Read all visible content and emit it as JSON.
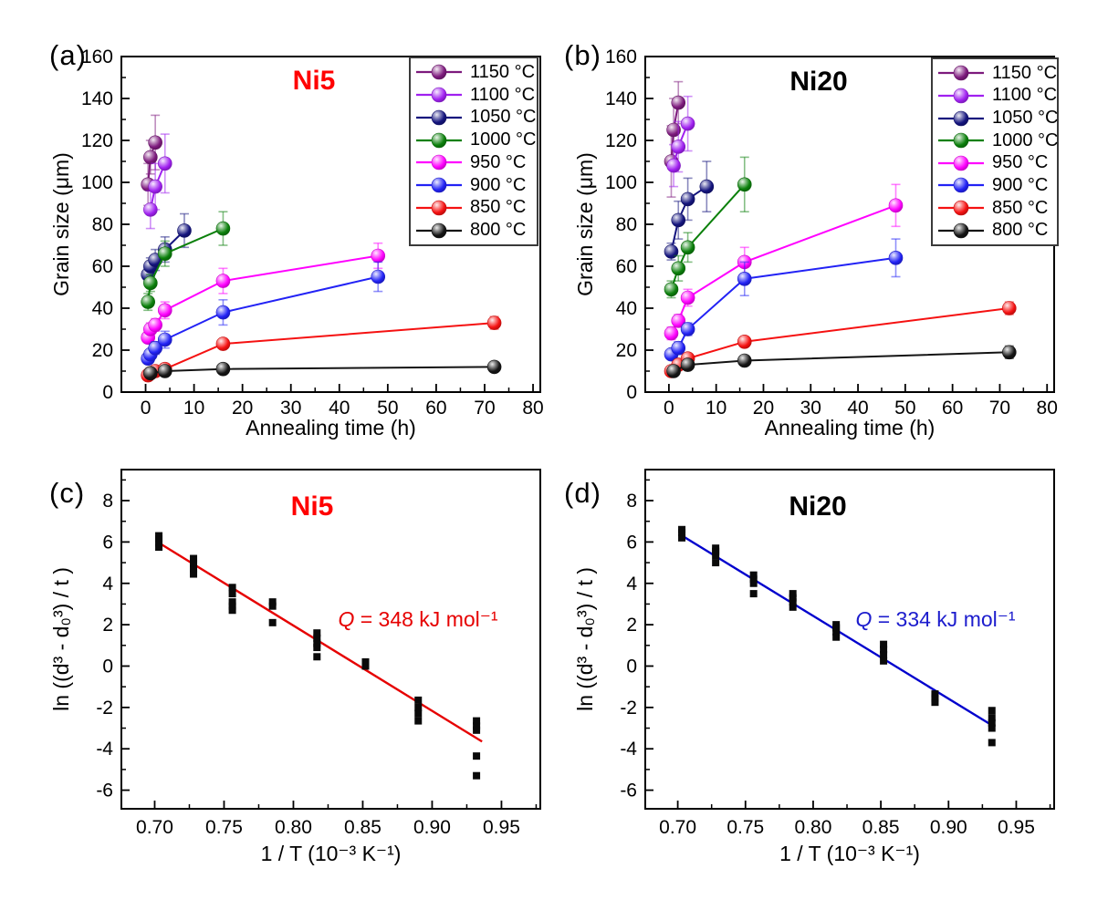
{
  "figure": {
    "background": "#ffffff"
  },
  "chart_data": [
    {
      "id": "a",
      "type": "line",
      "panel_label": "(a)",
      "title": "Ni5",
      "title_color": "#ff0000",
      "xlabel": "Annealing time (h)",
      "ylabel": "Grain size (μm)",
      "xlim": [
        -5,
        81.5
      ],
      "ylim": [
        0,
        160
      ],
      "xticks": [
        "0",
        "10",
        "20",
        "30",
        "40",
        "50",
        "60",
        "70",
        "80"
      ],
      "yticks": [
        "0",
        "20",
        "40",
        "60",
        "80",
        "100",
        "120",
        "140",
        "160"
      ],
      "xminor": 5,
      "yminor": 10,
      "legend_position": "top-right",
      "series": [
        {
          "name": "1150 °C",
          "color": "#7d1a7d",
          "x": [
            0.5,
            1,
            2
          ],
          "y": [
            99,
            112,
            119
          ],
          "err": [
            10,
            8,
            13
          ]
        },
        {
          "name": "1100 °C",
          "color": "#a020f0",
          "x": [
            1,
            2,
            4
          ],
          "y": [
            87,
            98,
            109
          ],
          "err": [
            9,
            11,
            14
          ]
        },
        {
          "name": "1050 °C",
          "color": "#14147e",
          "x": [
            0.5,
            1,
            2,
            4,
            8
          ],
          "y": [
            56,
            60,
            63,
            68,
            77
          ],
          "err": [
            3,
            4,
            5,
            6,
            8
          ]
        },
        {
          "name": "1000 °C",
          "color": "#0b800b",
          "x": [
            0.5,
            1,
            4,
            16
          ],
          "y": [
            43,
            52,
            66,
            78
          ],
          "err": [
            4,
            4,
            6,
            8
          ]
        },
        {
          "name": "950 °C",
          "color": "#ff00ff",
          "x": [
            0.5,
            1,
            2,
            4,
            16,
            48
          ],
          "y": [
            26,
            30,
            32,
            39,
            53,
            65
          ],
          "err": [
            2,
            3,
            3,
            4,
            6,
            6
          ]
        },
        {
          "name": "900 °C",
          "color": "#2222f5",
          "x": [
            0.5,
            1,
            2,
            4,
            16,
            48
          ],
          "y": [
            16,
            18,
            21,
            25,
            38,
            55
          ],
          "err": [
            2,
            2,
            3,
            4,
            6,
            7
          ]
        },
        {
          "name": "850 °C",
          "color": "#f51111",
          "x": [
            0.5,
            1,
            2,
            4,
            16,
            72
          ],
          "y": [
            8,
            9,
            10,
            11,
            23,
            33
          ],
          "err": [
            1,
            1,
            1,
            2,
            2,
            3
          ]
        },
        {
          "name": "800 °C",
          "color": "#141414",
          "x": [
            1,
            4,
            16,
            72
          ],
          "y": [
            9,
            10,
            11,
            12
          ],
          "err": [
            1,
            1,
            1,
            2
          ]
        }
      ]
    },
    {
      "id": "b",
      "type": "line",
      "panel_label": "(b)",
      "title": "Ni20",
      "title_color": "#000000",
      "xlabel": "Annealing time (h)",
      "ylabel": "Grain size (μm)",
      "xlim": [
        -5,
        81.5
      ],
      "ylim": [
        0,
        160
      ],
      "xticks": [
        "0",
        "10",
        "20",
        "30",
        "40",
        "50",
        "60",
        "70",
        "80"
      ],
      "yticks": [
        "0",
        "20",
        "40",
        "60",
        "80",
        "100",
        "120",
        "140",
        "160"
      ],
      "xminor": 5,
      "yminor": 10,
      "legend_position": "top-right",
      "series": [
        {
          "name": "1150 °C",
          "color": "#7d1a7d",
          "x": [
            0.5,
            1,
            2
          ],
          "y": [
            110,
            125,
            138
          ],
          "err": [
            17,
            15,
            10
          ]
        },
        {
          "name": "1100 °C",
          "color": "#a020f0",
          "x": [
            1,
            2,
            4
          ],
          "y": [
            108,
            117,
            128
          ],
          "err": [
            10,
            12,
            13
          ]
        },
        {
          "name": "1050 °C",
          "color": "#14147e",
          "x": [
            0.5,
            2,
            4,
            8
          ],
          "y": [
            67,
            82,
            92,
            98
          ],
          "err": [
            4,
            9,
            10,
            12
          ]
        },
        {
          "name": "1000 °C",
          "color": "#0b800b",
          "x": [
            0.5,
            2,
            4,
            16
          ],
          "y": [
            49,
            59,
            69,
            99
          ],
          "err": [
            4,
            6,
            7,
            13
          ]
        },
        {
          "name": "950 °C",
          "color": "#ff00ff",
          "x": [
            0.5,
            2,
            4,
            16,
            48
          ],
          "y": [
            28,
            34,
            45,
            62,
            89
          ],
          "err": [
            3,
            3,
            4,
            7,
            10
          ]
        },
        {
          "name": "900 °C",
          "color": "#2222f5",
          "x": [
            0.5,
            2,
            4,
            16,
            48
          ],
          "y": [
            18,
            21,
            30,
            54,
            64
          ],
          "err": [
            2,
            3,
            3,
            8,
            9
          ]
        },
        {
          "name": "850 °C",
          "color": "#f51111",
          "x": [
            0.5,
            2,
            4,
            16,
            72
          ],
          "y": [
            10,
            13,
            16,
            24,
            40
          ],
          "err": [
            1,
            2,
            2,
            2,
            3
          ]
        },
        {
          "name": "800 °C",
          "color": "#141414",
          "x": [
            1,
            4,
            16,
            72
          ],
          "y": [
            10,
            13,
            15,
            19
          ],
          "err": [
            1,
            1,
            2,
            3
          ]
        }
      ]
    },
    {
      "id": "c",
      "type": "scatter",
      "panel_label": "(c)",
      "title": "Ni5",
      "title_color": "#ff0000",
      "xlabel": "1 / T (10⁻³ K⁻¹)",
      "ylabel": "ln ((d³ - d₀³) / t )",
      "xlim": [
        0.676,
        0.978
      ],
      "ylim": [
        -6.9,
        9.5
      ],
      "xticks": [
        "0.70",
        "0.75",
        "0.80",
        "0.85",
        "0.90",
        "0.95"
      ],
      "yticks": [
        "-6",
        "-4",
        "-2",
        "0",
        "2",
        "4",
        "6",
        "8"
      ],
      "xminor": 0.025,
      "yminor": 1,
      "marker_color": "#0a0a0a",
      "points": [
        {
          "x": 0.703,
          "ys": [
            5.75,
            5.95,
            6.15,
            6.3
          ]
        },
        {
          "x": 0.728,
          "ys": [
            4.45,
            4.7,
            4.95,
            5.2
          ]
        },
        {
          "x": 0.756,
          "ys": [
            2.7,
            2.9,
            3.1,
            3.5,
            3.8
          ]
        },
        {
          "x": 0.785,
          "ys": [
            2.1,
            2.9,
            3.1
          ]
        },
        {
          "x": 0.817,
          "ys": [
            0.45,
            0.9,
            1.1,
            1.35,
            1.6
          ]
        },
        {
          "x": 0.852,
          "ys": [
            0.0,
            0.2
          ]
        },
        {
          "x": 0.89,
          "ys": [
            -1.65,
            -2.0,
            -2.3,
            -2.65
          ]
        },
        {
          "x": 0.932,
          "ys": [
            -2.65,
            -2.9,
            -3.1,
            -4.35,
            -5.3
          ]
        }
      ],
      "fit_line": {
        "x1": 0.702,
        "y1": 6.0,
        "x2": 0.936,
        "y2": -3.65,
        "color": "#e60000"
      },
      "annotation": {
        "var": "Q",
        "rest": " = 348 kJ mol⁻¹",
        "color": "#e60000"
      }
    },
    {
      "id": "d",
      "type": "scatter",
      "panel_label": "(d)",
      "title": "Ni20",
      "title_color": "#000000",
      "xlabel": "1 / T (10⁻³ K⁻¹)",
      "ylabel": "ln ((d³ - d₀³) / t )",
      "xlim": [
        0.676,
        0.978
      ],
      "ylim": [
        -6.9,
        9.5
      ],
      "xticks": [
        "0.70",
        "0.75",
        "0.80",
        "0.85",
        "0.90",
        "0.95"
      ],
      "yticks": [
        "-6",
        "-4",
        "-2",
        "0",
        "2",
        "4",
        "6",
        "8"
      ],
      "xminor": 0.025,
      "yminor": 1,
      "marker_color": "#0a0a0a",
      "points": [
        {
          "x": 0.703,
          "ys": [
            6.2,
            6.45,
            6.6
          ]
        },
        {
          "x": 0.728,
          "ys": [
            5.0,
            5.35,
            5.55,
            5.7
          ]
        },
        {
          "x": 0.756,
          "ys": [
            3.5,
            4.0,
            4.2,
            4.4
          ]
        },
        {
          "x": 0.785,
          "ys": [
            2.85,
            3.1,
            3.3,
            3.5
          ]
        },
        {
          "x": 0.817,
          "ys": [
            1.4,
            1.65,
            1.85,
            2.0
          ]
        },
        {
          "x": 0.852,
          "ys": [
            0.25,
            0.55,
            0.8,
            1.05
          ]
        },
        {
          "x": 0.89,
          "ys": [
            -1.35,
            -1.55,
            -1.75
          ]
        },
        {
          "x": 0.932,
          "ys": [
            -2.15,
            -2.5,
            -2.75,
            -3.0,
            -3.7
          ]
        }
      ],
      "fit_line": {
        "x1": 0.702,
        "y1": 6.35,
        "x2": 0.933,
        "y2": -2.9,
        "color": "#0000cd"
      },
      "annotation": {
        "var": "Q",
        "rest": " = 334 kJ mol⁻¹",
        "color": "#1c1ccd"
      }
    }
  ]
}
